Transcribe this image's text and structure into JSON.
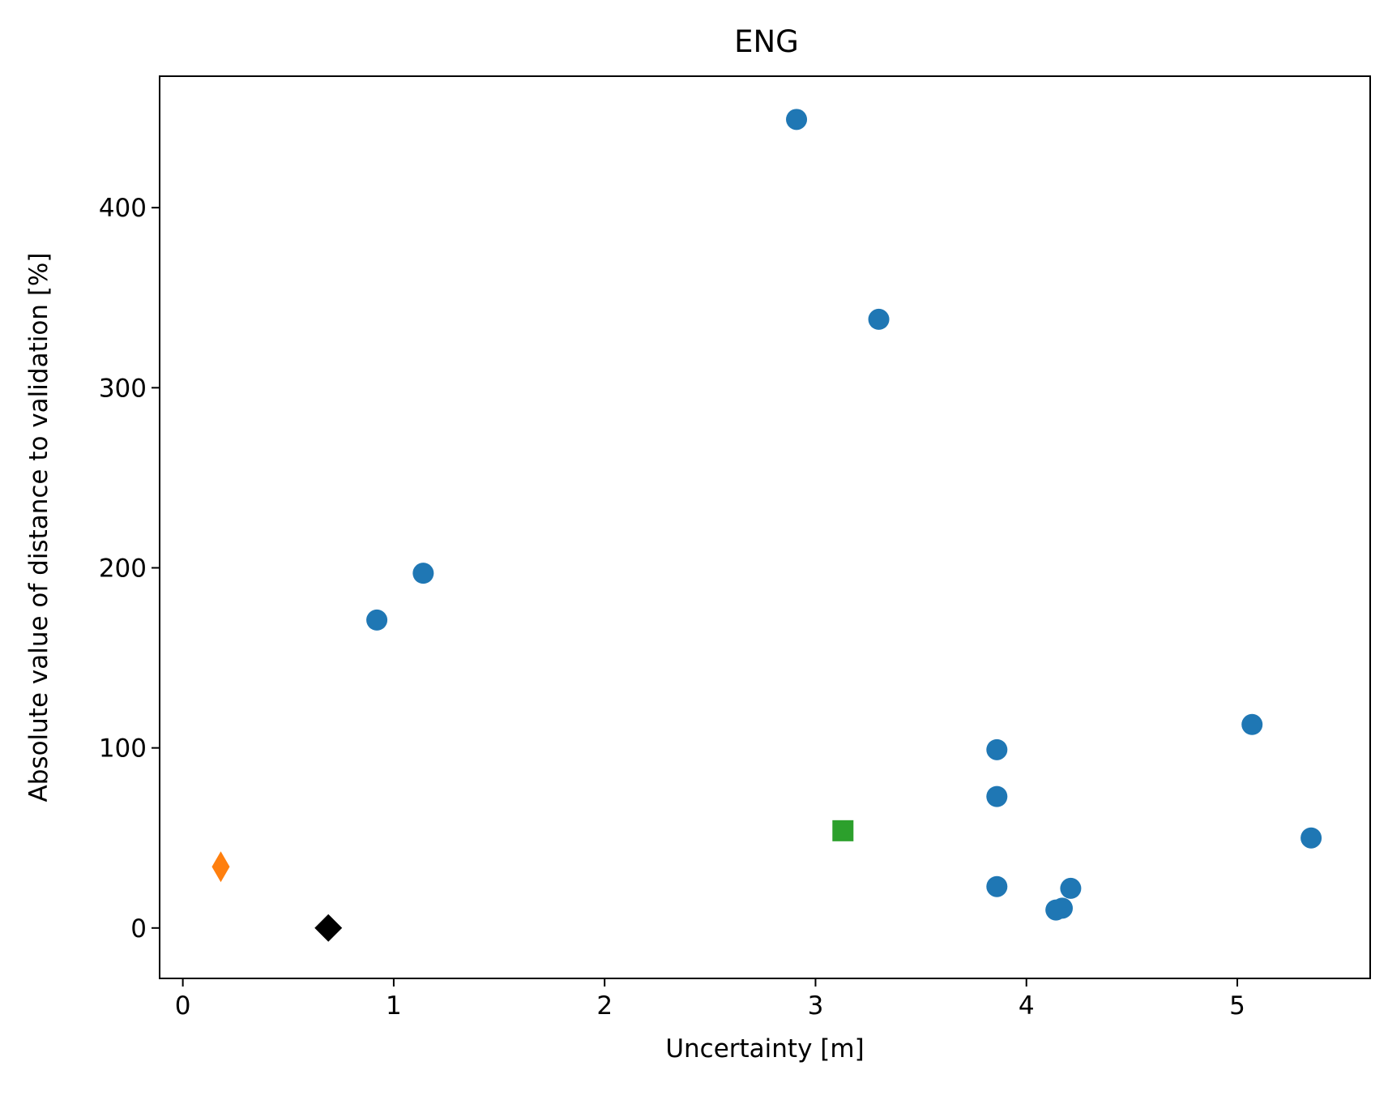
{
  "chart_data": {
    "type": "scatter",
    "title": "ENG",
    "xlabel": "Uncertainty [m]",
    "ylabel": "Absolute value of distance to validation [%]",
    "xlim": [
      -0.11,
      5.63
    ],
    "ylim": [
      -28,
      473
    ],
    "xticks": [
      0,
      1,
      2,
      3,
      4,
      5
    ],
    "yticks": [
      0,
      100,
      200,
      300,
      400
    ],
    "grid": false,
    "series": [
      {
        "marker": "circle",
        "color": "#1f77b4",
        "points": [
          {
            "x": 2.91,
            "y": 449
          },
          {
            "x": 3.3,
            "y": 338
          },
          {
            "x": 1.14,
            "y": 197
          },
          {
            "x": 0.92,
            "y": 171
          },
          {
            "x": 5.07,
            "y": 113
          },
          {
            "x": 3.86,
            "y": 99
          },
          {
            "x": 3.86,
            "y": 73
          },
          {
            "x": 5.35,
            "y": 50
          },
          {
            "x": 3.86,
            "y": 23
          },
          {
            "x": 4.21,
            "y": 22
          },
          {
            "x": 4.17,
            "y": 11
          },
          {
            "x": 4.14,
            "y": 10
          }
        ]
      },
      {
        "marker": "thin-diamond",
        "color": "#ff7f0e",
        "points": [
          {
            "x": 0.18,
            "y": 34
          }
        ]
      },
      {
        "marker": "square",
        "color": "#2ca02c",
        "points": [
          {
            "x": 3.13,
            "y": 54
          }
        ]
      },
      {
        "marker": "diamond",
        "color": "#000000",
        "points": [
          {
            "x": 0.69,
            "y": 0
          }
        ]
      }
    ]
  }
}
